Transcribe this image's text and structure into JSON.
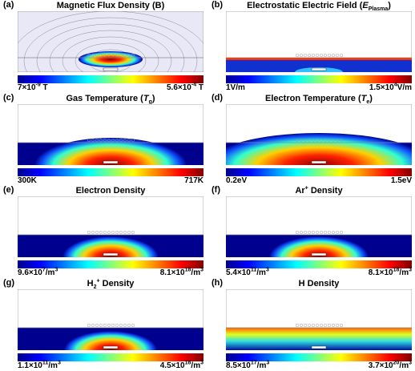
{
  "panels": [
    {
      "label": "(a)",
      "title": [
        {
          "t": "Magnetic Flux Density (B)"
        }
      ],
      "min": [
        {
          "t": "7×10"
        },
        {
          "t": "-9",
          "style": "sup"
        },
        {
          "t": " T"
        }
      ],
      "max": [
        {
          "t": "5.6×10"
        },
        {
          "t": "-4",
          "style": "sup"
        },
        {
          "t": " T"
        }
      ]
    },
    {
      "label": "(b)",
      "title": [
        {
          "t": "Electrostatic Electric Field ("
        },
        {
          "t": "E",
          "style": "i"
        },
        {
          "t": "Plasma",
          "style": "sub"
        },
        {
          "t": ")"
        }
      ],
      "min": [
        {
          "t": "1V/m"
        }
      ],
      "max": [
        {
          "t": "1.5×10"
        },
        {
          "t": "4",
          "style": "sup"
        },
        {
          "t": "V/m"
        }
      ]
    },
    {
      "label": "(c)",
      "title": [
        {
          "t": "Gas Temperature ("
        },
        {
          "t": "T",
          "style": "i"
        },
        {
          "t": "g",
          "style": "sub"
        },
        {
          "t": ")"
        }
      ],
      "min": [
        {
          "t": "300K"
        }
      ],
      "max": [
        {
          "t": "717K"
        }
      ]
    },
    {
      "label": "(d)",
      "title": [
        {
          "t": "Electron Temperature ("
        },
        {
          "t": "T",
          "style": "i"
        },
        {
          "t": "e",
          "style": "sub"
        },
        {
          "t": ")"
        }
      ],
      "min": [
        {
          "t": "0.2eV"
        }
      ],
      "max": [
        {
          "t": "1.5eV"
        }
      ]
    },
    {
      "label": "(e)",
      "title": [
        {
          "t": "Electron Density"
        }
      ],
      "min": [
        {
          "t": "9.6×10"
        },
        {
          "t": "7",
          "style": "sup"
        },
        {
          "t": "/m"
        },
        {
          "t": "3",
          "style": "sup"
        }
      ],
      "max": [
        {
          "t": "8.1×10"
        },
        {
          "t": "18",
          "style": "sup"
        },
        {
          "t": "/m"
        },
        {
          "t": "3",
          "style": "sup"
        }
      ]
    },
    {
      "label": "(f)",
      "title": [
        {
          "t": "Ar"
        },
        {
          "t": "+",
          "style": "sup"
        },
        {
          "t": " Density"
        }
      ],
      "min": [
        {
          "t": "5.4×10"
        },
        {
          "t": "11",
          "style": "sup"
        },
        {
          "t": "/m"
        },
        {
          "t": "3",
          "style": "sup"
        }
      ],
      "max": [
        {
          "t": "8.1×10"
        },
        {
          "t": "18",
          "style": "sup"
        },
        {
          "t": "/m"
        },
        {
          "t": "3",
          "style": "sup"
        }
      ]
    },
    {
      "label": "(g)",
      "title": [
        {
          "t": "H"
        },
        {
          "t": "2",
          "style": "sub"
        },
        {
          "t": "+",
          "style": "sup"
        },
        {
          "t": " Density"
        }
      ],
      "min": [
        {
          "t": "1.1×10"
        },
        {
          "t": "11",
          "style": "sup"
        },
        {
          "t": "/m"
        },
        {
          "t": "3",
          "style": "sup"
        }
      ],
      "max": [
        {
          "t": "4.5×10"
        },
        {
          "t": "18",
          "style": "sup"
        },
        {
          "t": "/m"
        },
        {
          "t": "3",
          "style": "sup"
        }
      ]
    },
    {
      "label": "(h)",
      "title": [
        {
          "t": "H Density"
        }
      ],
      "min": [
        {
          "t": "8.5×10"
        },
        {
          "t": "17",
          "style": "sup"
        },
        {
          "t": "/m"
        },
        {
          "t": "3",
          "style": "sup"
        }
      ],
      "max": [
        {
          "t": "3.7×10"
        },
        {
          "t": "20",
          "style": "sup"
        },
        {
          "t": "/m"
        },
        {
          "t": "3",
          "style": "sup"
        }
      ]
    }
  ]
}
